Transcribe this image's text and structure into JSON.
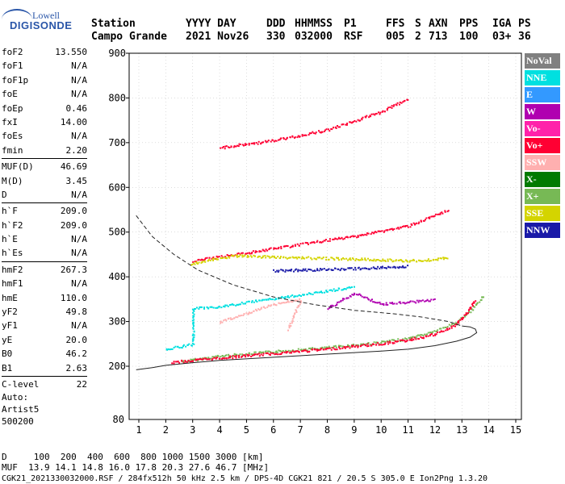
{
  "logo": {
    "line1": "Lowell",
    "line2": "DIGISONDE"
  },
  "header": {
    "station_label": "Station",
    "station_name": "Campo Grande",
    "cols": [
      {
        "label": "YYYY DAY",
        "value": "2021 Nov26"
      },
      {
        "label": "DDD",
        "value": "330"
      },
      {
        "label": "HHMMSS",
        "value": "032000"
      },
      {
        "label": "P1",
        "value": "RSF"
      },
      {
        "label": "FFS",
        "value": "005"
      },
      {
        "label": "S",
        "value": "2"
      },
      {
        "label": "AXN",
        "value": "713"
      },
      {
        "label": "PPS",
        "value": "100"
      },
      {
        "label": "IGA",
        "value": "03+"
      },
      {
        "label": "PS",
        "value": "36"
      }
    ]
  },
  "params": {
    "groups": [
      [
        {
          "k": "foF2",
          "v": "13.550"
        },
        {
          "k": "foF1",
          "v": "N/A"
        },
        {
          "k": "foF1p",
          "v": "N/A"
        },
        {
          "k": "foE",
          "v": "N/A"
        },
        {
          "k": "foEp",
          "v": "0.46"
        },
        {
          "k": "fxI",
          "v": "14.00"
        },
        {
          "k": "foEs",
          "v": "N/A"
        },
        {
          "k": "fmin",
          "v": "2.20"
        }
      ],
      [
        {
          "k": "MUF(D)",
          "v": "46.69"
        },
        {
          "k": "M(D)",
          "v": "3.45"
        },
        {
          "k": "D",
          "v": "N/A"
        }
      ],
      [
        {
          "k": "h`F",
          "v": "209.0"
        },
        {
          "k": "h`F2",
          "v": "209.0"
        },
        {
          "k": "h`E",
          "v": "N/A"
        },
        {
          "k": "h`Es",
          "v": "N/A"
        }
      ],
      [
        {
          "k": "hmF2",
          "v": "267.3"
        },
        {
          "k": "hmF1",
          "v": "N/A"
        },
        {
          "k": "hmE",
          "v": "110.0"
        },
        {
          "k": "yF2",
          "v": "49.8"
        },
        {
          "k": "yF1",
          "v": "N/A"
        },
        {
          "k": "yE",
          "v": "20.0"
        },
        {
          "k": "B0",
          "v": "46.2"
        },
        {
          "k": "B1",
          "v": "2.63"
        }
      ],
      [
        {
          "k": "C-level",
          "v": "22"
        }
      ]
    ]
  },
  "auto": {
    "line1": "Auto:",
    "line2": "Artist5",
    "line3": "500200"
  },
  "legend": [
    {
      "label": "NoVal",
      "color": "#808080"
    },
    {
      "label": "NNE",
      "color": "#00e0e0"
    },
    {
      "label": "E",
      "color": "#3399ff"
    },
    {
      "label": "W",
      "color": "#b000b0"
    },
    {
      "label": "Vo-",
      "color": "#ff22aa"
    },
    {
      "label": "Vo+",
      "color": "#ff0033"
    },
    {
      "label": "SSW",
      "color": "#ffb0b0"
    },
    {
      "label": "X-",
      "color": "#007a00"
    },
    {
      "label": "X+",
      "color": "#77b955"
    },
    {
      "label": "SSE",
      "color": "#d4d400"
    },
    {
      "label": "NNW",
      "color": "#1a1aa8"
    }
  ],
  "footer": {
    "line1": "D     100  200  400  600  800 1000 1500 3000 [km]",
    "line2": "MUF  13.9 14.1 14.8 16.0 17.8 20.3 27.6 46.7 [MHz]",
    "line3": "CGK21_2021330032000.RSF / 284fx512h 50 kHz 2.5 km / DPS-4D CGK21 821 / 20.5 S 305.0 E Ion2Png 1.3.20"
  },
  "chart_data": {
    "type": "scatter",
    "xlim": [
      0.9,
      15.2
    ],
    "ylim": [
      80,
      900
    ],
    "x_ticks": [
      1,
      2,
      3,
      4,
      5,
      6,
      7,
      8,
      9,
      10,
      11,
      12,
      13,
      14,
      15
    ],
    "x_tick_labels": [
      "1",
      "2",
      "3",
      "4",
      "5",
      "6",
      "7",
      "8",
      "9",
      "10",
      "11",
      "12",
      "13",
      "14",
      "15"
    ],
    "y_ticks": [
      200,
      300,
      400,
      500,
      600,
      700,
      800,
      900
    ],
    "y_tick_labels": [
      "200",
      "300",
      "400",
      "500",
      "600",
      "700",
      "800",
      "900"
    ],
    "y_bottom_label": "80",
    "grid": true,
    "traces": [
      {
        "name": "X+",
        "color": "#77b955",
        "points": [
          [
            2.6,
            212
          ],
          [
            4,
            224
          ],
          [
            6,
            234
          ],
          [
            8,
            243
          ],
          [
            10,
            255
          ],
          [
            11,
            263
          ],
          [
            12,
            280
          ],
          [
            12.8,
            300
          ],
          [
            13.4,
            330
          ],
          [
            13.8,
            360
          ]
        ]
      },
      {
        "name": "Vo+",
        "color": "#ff0033",
        "points": [
          [
            2.2,
            210
          ],
          [
            4,
            220
          ],
          [
            6,
            230
          ],
          [
            8,
            240
          ],
          [
            10,
            252
          ],
          [
            11,
            260
          ],
          [
            12,
            273
          ],
          [
            12.7,
            292
          ],
          [
            13.2,
            322
          ],
          [
            13.5,
            350
          ]
        ]
      },
      {
        "name": "Vo+",
        "color": "#ff0033",
        "points": [
          [
            3,
            437
          ],
          [
            5,
            455
          ],
          [
            7,
            474
          ],
          [
            9,
            492
          ],
          [
            11,
            515
          ],
          [
            12.5,
            550
          ]
        ]
      },
      {
        "name": "Vo+",
        "color": "#ff0033",
        "points": [
          [
            4,
            690
          ],
          [
            6,
            706
          ],
          [
            8,
            730
          ],
          [
            10,
            770
          ],
          [
            11,
            800
          ]
        ]
      },
      {
        "name": "SSE",
        "color": "#d4d400",
        "points": [
          [
            2.9,
            430
          ],
          [
            4.5,
            448
          ],
          [
            11.5,
            437
          ],
          [
            12.5,
            445
          ]
        ]
      },
      {
        "name": "NNW",
        "color": "#1a1aa8",
        "points": [
          [
            6,
            415
          ],
          [
            8,
            418
          ],
          [
            10,
            422
          ],
          [
            11,
            425
          ]
        ]
      },
      {
        "name": "NNE",
        "color": "#00e0e0",
        "points": [
          [
            2,
            240
          ],
          [
            3,
            250
          ],
          [
            3,
            330
          ],
          [
            4,
            335
          ],
          [
            8,
            370
          ],
          [
            9,
            380
          ]
        ]
      },
      {
        "name": "SSW",
        "color": "#ffb0b0",
        "points": [
          [
            4,
            300
          ],
          [
            5,
            320
          ],
          [
            6,
            340
          ],
          [
            7,
            350
          ],
          [
            6.5,
            280
          ]
        ]
      },
      {
        "name": "W",
        "color": "#b000b0",
        "points": [
          [
            8,
            330
          ],
          [
            9,
            365
          ],
          [
            10,
            340
          ],
          [
            12,
            350
          ]
        ]
      }
    ],
    "profile_solid": [
      [
        0.9,
        192
      ],
      [
        1.5,
        197
      ],
      [
        2,
        202
      ],
      [
        3,
        208
      ],
      [
        4,
        213
      ],
      [
        6,
        220
      ],
      [
        8,
        227
      ],
      [
        10,
        234
      ],
      [
        11,
        238
      ],
      [
        12,
        246
      ],
      [
        12.8,
        256
      ],
      [
        13.3,
        265
      ],
      [
        13.55,
        275
      ],
      [
        13.5,
        283
      ],
      [
        13.3,
        288
      ],
      [
        13.0,
        290
      ]
    ],
    "profile_dashed": [
      [
        0.9,
        537
      ],
      [
        1.5,
        490
      ],
      [
        2.3,
        450
      ],
      [
        3.2,
        415
      ],
      [
        4.5,
        382
      ],
      [
        6,
        355
      ],
      [
        7.5,
        338
      ],
      [
        9,
        325
      ],
      [
        10.5,
        317
      ],
      [
        11.5,
        310
      ],
      [
        12.5,
        300
      ],
      [
        13,
        290
      ]
    ],
    "labels": {
      "y_axis": "",
      "x_axis": ""
    }
  }
}
